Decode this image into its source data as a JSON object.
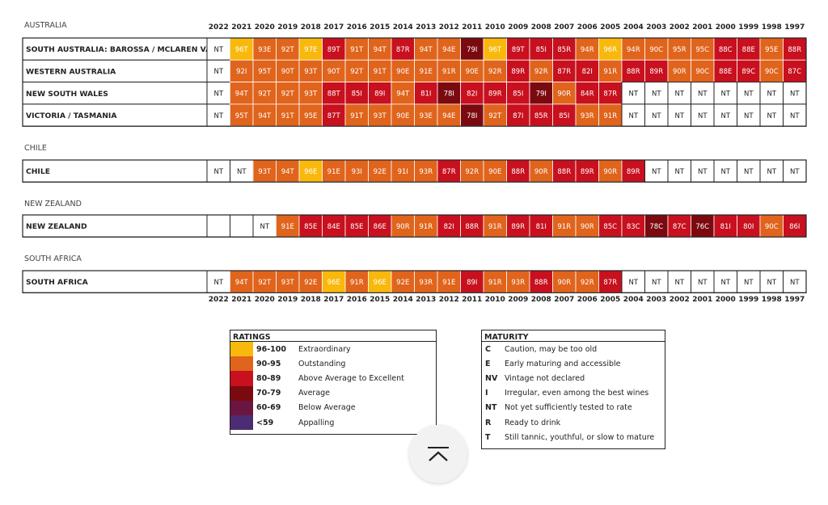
{
  "colors": {
    "96-100": "#f9b80c",
    "90-95": "#e0641c",
    "80-89": "#c8101e",
    "70-79": "#7b0a10",
    "60-69": "#6a1640",
    "<59": "#4c2c73",
    "NT": "#ffffff",
    "grid": "#222222"
  },
  "chart_data": {
    "type": "table",
    "years": [
      "2022",
      "2021",
      "2020",
      "2019",
      "2018",
      "2017",
      "2016",
      "2015",
      "2014",
      "2013",
      "2012",
      "2011",
      "2010",
      "2009",
      "2008",
      "2007",
      "2006",
      "2005",
      "2004",
      "2003",
      "2002",
      "2001",
      "2000",
      "1999",
      "1998",
      "1997"
    ],
    "sections": [
      {
        "title": "AUSTRALIA",
        "rows": [
          {
            "region": "SOUTH AUSTRALIA: BAROSSA / MCLAREN VALE",
            "ratings": [
              "NT",
              "96T",
              "93E",
              "92T",
              "97E",
              "89T",
              "91T",
              "94T",
              "87R",
              "94T",
              "94E",
              "79I",
              "96T",
              "89T",
              "85I",
              "85R",
              "94R",
              "96R",
              "94R",
              "90C",
              "95R",
              "95C",
              "88C",
              "88E",
              "95E",
              "88R"
            ]
          },
          {
            "region": "WESTERN AUSTRALIA",
            "ratings": [
              "NT",
              "92I",
              "95T",
              "90T",
              "93T",
              "90T",
              "92T",
              "91T",
              "90E",
              "91E",
              "91R",
              "90E",
              "92R",
              "89R",
              "92R",
              "87R",
              "82I",
              "91R",
              "88R",
              "89R",
              "90R",
              "90C",
              "88E",
              "89C",
              "90C",
              "87C"
            ]
          },
          {
            "region": "NEW SOUTH WALES",
            "ratings": [
              "NT",
              "94T",
              "92T",
              "92T",
              "93T",
              "88T",
              "85I",
              "89I",
              "94T",
              "81I",
              "78I",
              "82I",
              "89R",
              "85I",
              "79I",
              "90R",
              "84R",
              "87R",
              "NT",
              "NT",
              "NT",
              "NT",
              "NT",
              "NT",
              "NT",
              "NT"
            ]
          },
          {
            "region": "VICTORIA / TASMANIA",
            "ratings": [
              "NT",
              "95T",
              "94T",
              "91T",
              "95E",
              "87T",
              "91T",
              "93T",
              "90E",
              "93E",
              "94E",
              "78I",
              "92T",
              "87I",
              "85R",
              "85I",
              "93R",
              "91R",
              "NT",
              "NT",
              "NT",
              "NT",
              "NT",
              "NT",
              "NT",
              "NT"
            ]
          }
        ]
      },
      {
        "title": "CHILE",
        "rows": [
          {
            "region": "CHILE",
            "ratings": [
              "NT",
              "NT",
              "93T",
              "94T",
              "96E",
              "91E",
              "93I",
              "92E",
              "91I",
              "93R",
              "87R",
              "92R",
              "90E",
              "88R",
              "90R",
              "88R",
              "89R",
              "90R",
              "89R",
              "NT",
              "NT",
              "NT",
              "NT",
              "NT",
              "NT",
              "NT"
            ]
          }
        ]
      },
      {
        "title": "NEW ZEALAND",
        "rows": [
          {
            "region": "NEW ZEALAND",
            "ratings": [
              "",
              "",
              "NT",
              "91E",
              "85E",
              "84E",
              "85E",
              "86E",
              "90R",
              "91R",
              "82I",
              "88R",
              "91R",
              "89R",
              "81I",
              "91R",
              "90R",
              "85C",
              "83C",
              "78C",
              "87C",
              "76C",
              "81I",
              "80I",
              "90C",
              "86I"
            ]
          }
        ]
      },
      {
        "title": "SOUTH AFRICA",
        "rows": [
          {
            "region": "SOUTH AFRICA",
            "ratings": [
              "NT",
              "94T",
              "92T",
              "93T",
              "92E",
              "96E",
              "91R",
              "96E",
              "92E",
              "93R",
              "91E",
              "89I",
              "91R",
              "93R",
              "88R",
              "90R",
              "92R",
              "87R",
              "NT",
              "NT",
              "NT",
              "NT",
              "NT",
              "NT",
              "NT",
              "NT"
            ]
          }
        ]
      }
    ]
  },
  "ratings_legend": {
    "title": "RATINGS",
    "items": [
      {
        "range": "96-100",
        "label": "Extraordinary",
        "color": "#f9b80c"
      },
      {
        "range": "90-95",
        "label": "Outstanding",
        "color": "#e0641c"
      },
      {
        "range": "80-89",
        "label": "Above Average to Excellent",
        "color": "#c8101e"
      },
      {
        "range": "70-79",
        "label": "Average",
        "color": "#7b0a10"
      },
      {
        "range": "60-69",
        "label": "Below Average",
        "color": "#6a1640"
      },
      {
        "range": "<59",
        "label": "Appalling",
        "color": "#4c2c73"
      }
    ]
  },
  "maturity_legend": {
    "title": "MATURITY",
    "items": [
      {
        "code": "C",
        "label": "Caution, may be too old"
      },
      {
        "code": "E",
        "label": "Early maturing and accessible"
      },
      {
        "code": "NV",
        "label": "Vintage not declared"
      },
      {
        "code": "I",
        "label": "Irregular, even among the best wines"
      },
      {
        "code": "NT",
        "label": "Not yet sufficiently tested to rate"
      },
      {
        "code": "R",
        "label": "Ready to drink"
      },
      {
        "code": "T",
        "label": "Still tannic, youthful, or slow to mature"
      }
    ]
  },
  "scroll_top_button": {
    "icon": "chevron-up-icon"
  }
}
